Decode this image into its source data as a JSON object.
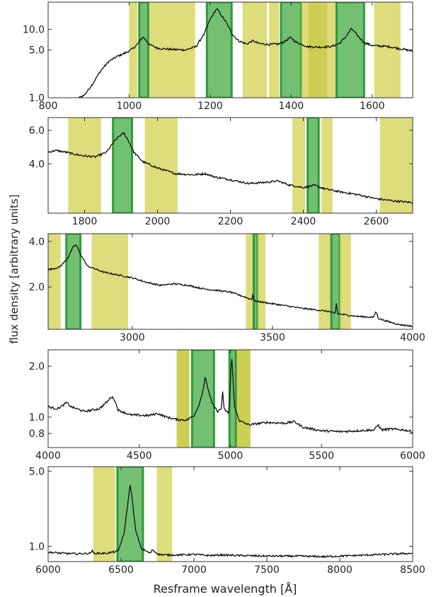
{
  "figure": {
    "ylabel": "flux density [arbitrary units]",
    "xlabel": "Resframe wavelength [Å]"
  },
  "colors": {
    "window_yellow": "#d4d45a",
    "window_green": "#5ab55a",
    "window_green_edge": "#2f9a3a",
    "window_olive": "#c2c22a",
    "spectrum": "#111111",
    "frame": "#333333"
  },
  "chart_data": [
    {
      "type": "line",
      "title": "",
      "xlabel": "",
      "ylabel": "",
      "xlim": [
        800,
        1700
      ],
      "ylim": [
        1.0,
        25.0
      ],
      "yscale": "log",
      "x_ticks": [
        800,
        1000,
        1200,
        1400,
        1600
      ],
      "y_ticks": [
        {
          "value": 1.0,
          "label": "1.0"
        },
        {
          "value": 5.0,
          "label": "5.0"
        },
        {
          "value": 10.0,
          "label": "10.0"
        }
      ],
      "windows": [
        {
          "kind": "yellow",
          "x0": 1000,
          "x1": 1020
        },
        {
          "kind": "green",
          "x0": 1025,
          "x1": 1047
        },
        {
          "kind": "yellow",
          "x0": 1050,
          "x1": 1100
        },
        {
          "kind": "yellow",
          "x0": 1100,
          "x1": 1163
        },
        {
          "kind": "green",
          "x0": 1192,
          "x1": 1253
        },
        {
          "kind": "yellow",
          "x0": 1280,
          "x1": 1340
        },
        {
          "kind": "yellow",
          "x0": 1345,
          "x1": 1370
        },
        {
          "kind": "green",
          "x0": 1375,
          "x1": 1425
        },
        {
          "kind": "yellow",
          "x0": 1425,
          "x1": 1442
        },
        {
          "kind": "olive",
          "x0": 1442,
          "x1": 1490
        },
        {
          "kind": "yellow",
          "x0": 1490,
          "x1": 1510
        },
        {
          "kind": "green",
          "x0": 1512,
          "x1": 1580
        },
        {
          "kind": "yellow",
          "x0": 1605,
          "x1": 1670
        }
      ],
      "spectrum": {
        "noise": 0.035,
        "points": [
          [
            830,
            0.85
          ],
          [
            860,
            0.9
          ],
          [
            890,
            1.1
          ],
          [
            910,
            1.6
          ],
          [
            930,
            2.5
          ],
          [
            950,
            3.4
          ],
          [
            970,
            4.0
          ],
          [
            990,
            4.5
          ],
          [
            1005,
            5.0
          ],
          [
            1020,
            6.0
          ],
          [
            1034,
            7.8
          ],
          [
            1050,
            6.0
          ],
          [
            1070,
            5.3
          ],
          [
            1100,
            5.1
          ],
          [
            1140,
            5.0
          ],
          [
            1165,
            5.6
          ],
          [
            1185,
            8.5
          ],
          [
            1200,
            14.0
          ],
          [
            1216,
            20.0
          ],
          [
            1225,
            17.0
          ],
          [
            1240,
            12.5
          ],
          [
            1255,
            8.5
          ],
          [
            1270,
            6.8
          ],
          [
            1290,
            6.1
          ],
          [
            1305,
            6.8
          ],
          [
            1320,
            6.2
          ],
          [
            1345,
            6.0
          ],
          [
            1370,
            6.1
          ],
          [
            1385,
            6.7
          ],
          [
            1398,
            7.6
          ],
          [
            1412,
            6.5
          ],
          [
            1440,
            5.6
          ],
          [
            1470,
            5.5
          ],
          [
            1500,
            5.6
          ],
          [
            1520,
            6.3
          ],
          [
            1535,
            7.8
          ],
          [
            1549,
            10.3
          ],
          [
            1562,
            8.3
          ],
          [
            1580,
            6.4
          ],
          [
            1600,
            5.8
          ],
          [
            1640,
            5.6
          ],
          [
            1670,
            5.2
          ],
          [
            1700,
            4.8
          ]
        ]
      }
    },
    {
      "type": "line",
      "title": "",
      "xlabel": "",
      "ylabel": "",
      "xlim": [
        1700,
        2700
      ],
      "ylim": [
        2.2,
        7.0
      ],
      "yscale": "log",
      "x_ticks": [
        1800,
        2000,
        2200,
        2400,
        2600
      ],
      "y_ticks": [
        {
          "value": 4.0,
          "label": "4.0"
        },
        {
          "value": 6.0,
          "label": "6.0"
        }
      ],
      "windows": [
        {
          "kind": "yellow",
          "x0": 1755,
          "x1": 1845
        },
        {
          "kind": "green",
          "x0": 1878,
          "x1": 1930
        },
        {
          "kind": "yellow",
          "x0": 1965,
          "x1": 2055
        },
        {
          "kind": "yellow",
          "x0": 2370,
          "x1": 2405
        },
        {
          "kind": "green",
          "x0": 2412,
          "x1": 2442
        },
        {
          "kind": "yellow",
          "x0": 2450,
          "x1": 2480
        },
        {
          "kind": "yellow",
          "x0": 2610,
          "x1": 2700
        }
      ],
      "spectrum": {
        "noise": 0.012,
        "points": [
          [
            1700,
            4.6
          ],
          [
            1720,
            4.7
          ],
          [
            1750,
            4.6
          ],
          [
            1770,
            4.5
          ],
          [
            1800,
            4.4
          ],
          [
            1830,
            4.35
          ],
          [
            1860,
            4.6
          ],
          [
            1880,
            5.2
          ],
          [
            1895,
            5.6
          ],
          [
            1908,
            5.8
          ],
          [
            1920,
            5.3
          ],
          [
            1935,
            4.6
          ],
          [
            1960,
            4.1
          ],
          [
            2000,
            3.8
          ],
          [
            2050,
            3.55
          ],
          [
            2100,
            3.5
          ],
          [
            2130,
            3.55
          ],
          [
            2160,
            3.4
          ],
          [
            2200,
            3.3
          ],
          [
            2250,
            3.15
          ],
          [
            2300,
            3.2
          ],
          [
            2330,
            3.25
          ],
          [
            2360,
            3.1
          ],
          [
            2400,
            3.0
          ],
          [
            2430,
            3.08
          ],
          [
            2460,
            2.95
          ],
          [
            2500,
            2.85
          ],
          [
            2550,
            2.75
          ],
          [
            2600,
            2.62
          ],
          [
            2650,
            2.55
          ],
          [
            2700,
            2.5
          ]
        ]
      }
    },
    {
      "type": "line",
      "title": "",
      "xlabel": "",
      "ylabel": "",
      "xlim": [
        2700,
        4000
      ],
      "ylim": [
        1.05,
        4.5
      ],
      "yscale": "log",
      "x_ticks": [
        3000,
        3500,
        4000
      ],
      "y_ticks": [
        {
          "value": 2.0,
          "label": "2.0"
        },
        {
          "value": 4.0,
          "label": "4.0"
        }
      ],
      "windows": [
        {
          "kind": "yellow",
          "x0": 2700,
          "x1": 2745
        },
        {
          "kind": "green",
          "x0": 2765,
          "x1": 2815
        },
        {
          "kind": "yellow",
          "x0": 2855,
          "x1": 2985
        },
        {
          "kind": "yellow",
          "x0": 3405,
          "x1": 3433
        },
        {
          "kind": "green",
          "x0": 3433,
          "x1": 3447
        },
        {
          "kind": "yellow",
          "x0": 3447,
          "x1": 3475
        },
        {
          "kind": "yellow",
          "x0": 3665,
          "x1": 3710
        },
        {
          "kind": "green",
          "x0": 3710,
          "x1": 3740
        },
        {
          "kind": "yellow",
          "x0": 3740,
          "x1": 3780
        }
      ],
      "spectrum": {
        "noise": 0.012,
        "points": [
          [
            2700,
            2.6
          ],
          [
            2740,
            2.7
          ],
          [
            2770,
            3.1
          ],
          [
            2790,
            3.7
          ],
          [
            2800,
            3.8
          ],
          [
            2815,
            3.3
          ],
          [
            2840,
            2.75
          ],
          [
            2900,
            2.5
          ],
          [
            2950,
            2.4
          ],
          [
            3000,
            2.3
          ],
          [
            3050,
            2.15
          ],
          [
            3100,
            2.05
          ],
          [
            3150,
            2.1
          ],
          [
            3200,
            2.05
          ],
          [
            3250,
            1.95
          ],
          [
            3300,
            1.9
          ],
          [
            3350,
            1.85
          ],
          [
            3400,
            1.72
          ],
          [
            3426,
            1.65
          ],
          [
            3430,
            1.8
          ],
          [
            3434,
            1.62
          ],
          [
            3500,
            1.55
          ],
          [
            3600,
            1.45
          ],
          [
            3700,
            1.38
          ],
          [
            3724,
            1.33
          ],
          [
            3728,
            1.6
          ],
          [
            3732,
            1.33
          ],
          [
            3800,
            1.28
          ],
          [
            3860,
            1.26
          ],
          [
            3869,
            1.38
          ],
          [
            3878,
            1.24
          ],
          [
            3900,
            1.2
          ],
          [
            3950,
            1.13
          ],
          [
            4000,
            1.1
          ]
        ]
      }
    },
    {
      "type": "line",
      "title": "",
      "xlabel": "",
      "ylabel": "",
      "xlim": [
        4000,
        6000
      ],
      "ylim": [
        0.66,
        2.5
      ],
      "yscale": "log",
      "x_ticks": [
        4000,
        4500,
        5000,
        5500,
        6000
      ],
      "y_ticks": [
        {
          "value": 0.8,
          "label": "0.8"
        },
        {
          "value": 1.0,
          "label": "1.0"
        },
        {
          "value": 2.0,
          "label": "2.0"
        }
      ],
      "windows": [
        {
          "kind": "olive",
          "x0": 4705,
          "x1": 4775
        },
        {
          "kind": "green",
          "x0": 4790,
          "x1": 4910
        },
        {
          "kind": "green",
          "x0": 4995,
          "x1": 5030
        },
        {
          "kind": "olive",
          "x0": 5035,
          "x1": 5110
        }
      ],
      "spectrum": {
        "noise": 0.015,
        "points": [
          [
            4000,
            1.15
          ],
          [
            4050,
            1.12
          ],
          [
            4080,
            1.17
          ],
          [
            4102,
            1.22
          ],
          [
            4125,
            1.15
          ],
          [
            4200,
            1.08
          ],
          [
            4280,
            1.12
          ],
          [
            4330,
            1.25
          ],
          [
            4345,
            1.32
          ],
          [
            4362,
            1.28
          ],
          [
            4385,
            1.1
          ],
          [
            4450,
            1.03
          ],
          [
            4550,
            1.02
          ],
          [
            4600,
            1.05
          ],
          [
            4650,
            1.0
          ],
          [
            4700,
            0.97
          ],
          [
            4760,
            0.96
          ],
          [
            4800,
            1.02
          ],
          [
            4830,
            1.2
          ],
          [
            4850,
            1.45
          ],
          [
            4861,
            1.72
          ],
          [
            4875,
            1.5
          ],
          [
            4900,
            1.2
          ],
          [
            4930,
            1.08
          ],
          [
            4950,
            1.12
          ],
          [
            4957,
            1.45
          ],
          [
            4964,
            1.12
          ],
          [
            4990,
            1.05
          ],
          [
            4998,
            1.3
          ],
          [
            5002,
            1.9
          ],
          [
            5007,
            2.25
          ],
          [
            5013,
            1.8
          ],
          [
            5022,
            1.15
          ],
          [
            5050,
            0.95
          ],
          [
            5100,
            0.9
          ],
          [
            5200,
            0.93
          ],
          [
            5300,
            0.92
          ],
          [
            5350,
            0.94
          ],
          [
            5400,
            0.87
          ],
          [
            5500,
            0.83
          ],
          [
            5600,
            0.82
          ],
          [
            5700,
            0.83
          ],
          [
            5790,
            0.84
          ],
          [
            5810,
            0.9
          ],
          [
            5830,
            0.84
          ],
          [
            5880,
            0.85
          ],
          [
            5950,
            0.84
          ],
          [
            6000,
            0.82
          ]
        ]
      }
    },
    {
      "type": "line",
      "title": "",
      "xlabel": "",
      "ylabel": "",
      "xlim": [
        6000,
        8500
      ],
      "ylim": [
        0.72,
        5.5
      ],
      "yscale": "log",
      "x_ticks": [
        6000,
        6500,
        7000,
        7500,
        8000,
        8500
      ],
      "y_ticks": [
        {
          "value": 1.0,
          "label": "1.0"
        },
        {
          "value": 5.0,
          "label": "5.0"
        }
      ],
      "windows": [
        {
          "kind": "yellow",
          "x0": 6310,
          "x1": 6460
        },
        {
          "kind": "green",
          "x0": 6475,
          "x1": 6650
        },
        {
          "kind": "yellow",
          "x0": 6745,
          "x1": 6850
        }
      ],
      "spectrum": {
        "noise": 0.02,
        "points": [
          [
            6000,
            0.88
          ],
          [
            6100,
            0.86
          ],
          [
            6200,
            0.85
          ],
          [
            6290,
            0.86
          ],
          [
            6300,
            0.92
          ],
          [
            6310,
            0.86
          ],
          [
            6400,
            0.86
          ],
          [
            6480,
            0.9
          ],
          [
            6520,
            1.3
          ],
          [
            6545,
            2.4
          ],
          [
            6563,
            3.8
          ],
          [
            6580,
            2.5
          ],
          [
            6600,
            1.4
          ],
          [
            6640,
            0.95
          ],
          [
            6700,
            0.86
          ],
          [
            6716,
            0.93
          ],
          [
            6731,
            0.89
          ],
          [
            6760,
            0.84
          ],
          [
            6800,
            0.83
          ],
          [
            6900,
            0.83
          ],
          [
            7000,
            0.84
          ],
          [
            7100,
            0.82
          ],
          [
            7200,
            0.83
          ],
          [
            7300,
            0.82
          ],
          [
            7500,
            0.81
          ],
          [
            7700,
            0.81
          ],
          [
            7900,
            0.8
          ],
          [
            8100,
            0.82
          ],
          [
            8300,
            0.84
          ],
          [
            8500,
            0.86
          ]
        ]
      }
    }
  ]
}
